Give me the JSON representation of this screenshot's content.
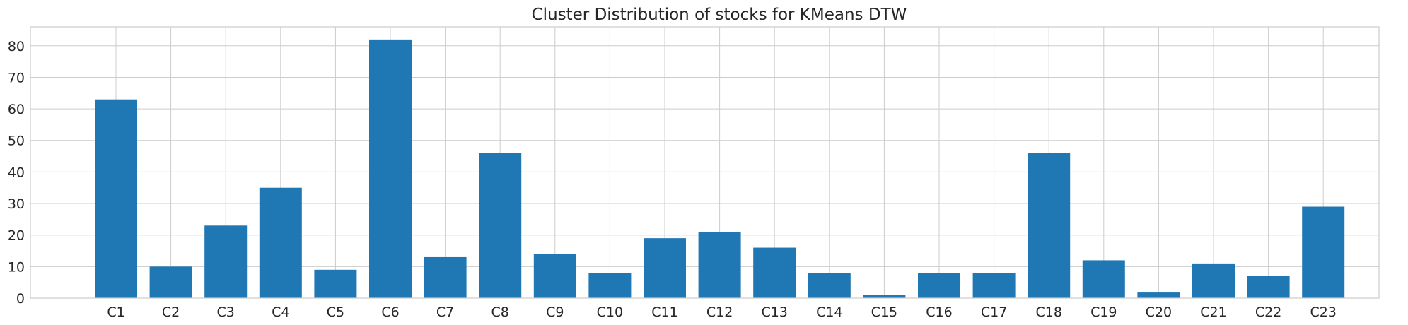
{
  "colors": {
    "bar": "#1f77b4",
    "grid": "#cccccc",
    "text": "#262626",
    "background": "#ffffff"
  },
  "chart_data": {
    "type": "bar",
    "title": "Cluster Distribution of stocks for KMeans DTW",
    "xlabel": "",
    "ylabel": "",
    "categories": [
      "C1",
      "C2",
      "C3",
      "C4",
      "C5",
      "C6",
      "C7",
      "C8",
      "C9",
      "C10",
      "C11",
      "C12",
      "C13",
      "C14",
      "C15",
      "C16",
      "C17",
      "C18",
      "C19",
      "C20",
      "C21",
      "C22",
      "C23"
    ],
    "values": [
      63,
      10,
      23,
      35,
      9,
      82,
      13,
      46,
      14,
      8,
      19,
      21,
      16,
      8,
      1,
      8,
      8,
      46,
      12,
      2,
      11,
      7,
      29
    ],
    "ylim": [
      0,
      86
    ],
    "yticks": [
      0,
      10,
      20,
      30,
      40,
      50,
      60,
      70,
      80
    ],
    "grid": true,
    "legend": "none"
  }
}
